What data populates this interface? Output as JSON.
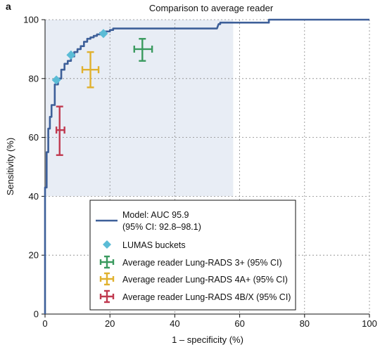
{
  "chart_data": {
    "type": "line",
    "panel_label": "a",
    "title": "Comparison to average reader",
    "xlabel": "1 – specificity (%)",
    "ylabel": "Sensitivity (%)",
    "xlim": [
      0,
      100
    ],
    "ylim": [
      0,
      100
    ],
    "x_ticks": [
      0,
      20,
      40,
      60,
      80,
      100
    ],
    "y_ticks": [
      0,
      20,
      40,
      60,
      80,
      100
    ],
    "grid": true,
    "legend_position": "bottom-center",
    "zoom_region": {
      "x": [
        0,
        58
      ],
      "y": [
        40,
        100
      ]
    },
    "colors": {
      "roc": "#3d5f99",
      "lumas": "#5bbcd6",
      "reader_3": "#3a9a5f",
      "reader_4a": "#e0b12e",
      "reader_4b": "#c0394f",
      "zoom_fill": "#e8edf5",
      "legend_border": "#111111"
    },
    "roc_curve": {
      "name": "Model: AUC 95.9",
      "name_line2": "(95% CI: 92.8–98.1)",
      "x": [
        0,
        0,
        0.5,
        0.5,
        1,
        1,
        1.5,
        1.5,
        2,
        2,
        3,
        3,
        4,
        4,
        5,
        5,
        6,
        6,
        7,
        7,
        8,
        8,
        9,
        9,
        10,
        10,
        11,
        11,
        12,
        12,
        13,
        13,
        14,
        14,
        15,
        15,
        16,
        16,
        17,
        17,
        18,
        18,
        20,
        20,
        21,
        21,
        53,
        53.5,
        54,
        54,
        69,
        69,
        100
      ],
      "y": [
        0,
        43,
        43,
        55,
        55,
        63,
        63,
        67,
        67,
        71,
        71,
        78,
        78,
        80,
        80,
        83,
        83,
        85,
        85,
        86,
        86,
        87.5,
        87.5,
        89,
        89,
        90,
        90,
        91,
        91,
        92.5,
        92.5,
        93.5,
        93.5,
        94,
        94,
        94.5,
        94.5,
        95,
        95,
        95.5,
        95.5,
        96,
        96,
        96.5,
        96.5,
        97,
        97,
        98.5,
        98.5,
        99,
        99,
        100,
        100
      ]
    },
    "lumas_buckets": {
      "name": "LUMAS buckets",
      "points": [
        {
          "x": 3.5,
          "y": 79.5
        },
        {
          "x": 8,
          "y": 88
        },
        {
          "x": 18,
          "y": 95.3
        }
      ]
    },
    "readers": [
      {
        "name": "Average reader Lung-RADS 3+ (95% CI)",
        "x": 30,
        "y": 90,
        "x_ci": [
          27.5,
          33
        ],
        "y_ci": [
          86,
          93.5
        ]
      },
      {
        "name": "Average reader Lung-RADS 4A+ (95% CI)",
        "x": 14,
        "y": 83,
        "x_ci": [
          11.5,
          16.5
        ],
        "y_ci": [
          77,
          89
        ]
      },
      {
        "name": "Average reader Lung-RADS 4B/X (95% CI)",
        "x": 4.5,
        "y": 62.5,
        "x_ci": [
          3.5,
          6
        ],
        "y_ci": [
          54,
          70.5
        ]
      }
    ]
  }
}
